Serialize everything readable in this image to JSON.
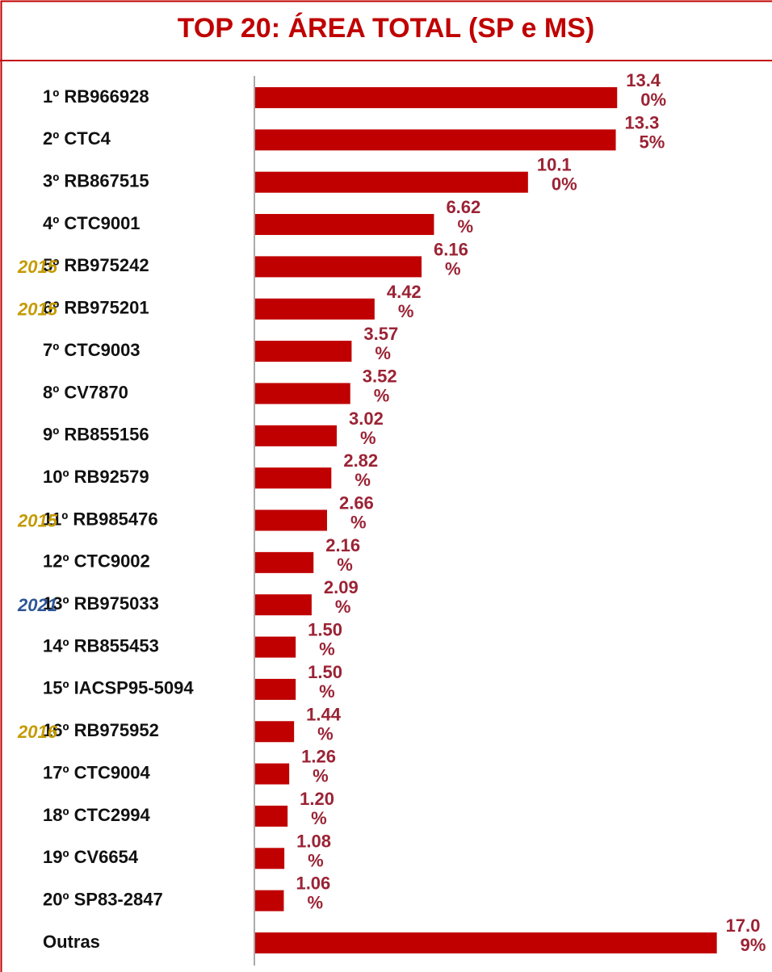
{
  "chart_data": {
    "type": "bar",
    "orientation": "horizontal",
    "title": "TOP 20: ÁREA TOTAL (SP e MS)",
    "categories": [
      "1º RB966928",
      "2º CTC4",
      "3º RB867515",
      "4º CTC9001",
      "5º RB975242",
      "6º RB975201",
      "7º CTC9003",
      "8º CV7870",
      "9º RB855156",
      "10º RB92579",
      "11º RB985476",
      "12º CTC9002",
      "13º RB975033",
      "14º RB855453",
      "15º IACSP95-5094",
      "16º RB975952",
      "17º CTC9004",
      "18º CTC2994",
      "19º CV6654",
      "20º SP83-2847",
      "Outras"
    ],
    "values": [
      13.4,
      13.35,
      10.1,
      6.62,
      6.16,
      4.42,
      3.57,
      3.52,
      3.02,
      2.82,
      2.66,
      2.16,
      2.09,
      1.5,
      1.5,
      1.44,
      1.26,
      1.2,
      1.08,
      1.06,
      17.09
    ],
    "value_labels": [
      "13.40%",
      "13.35%",
      "10.10%",
      "6.62%",
      "6.16%",
      "4.42%",
      "3.57%",
      "3.52%",
      "3.02%",
      "2.82%",
      "2.66%",
      "2.16%",
      "2.09%",
      "1.50%",
      "1.50%",
      "1.44%",
      "1.26%",
      "1.20%",
      "1.08%",
      "1.06%",
      "17.09%"
    ],
    "color": "#c00000",
    "year_tags": [
      null,
      null,
      null,
      null,
      {
        "text": "2015",
        "color": "#c49a00"
      },
      {
        "text": "2015",
        "color": "#c49a00"
      },
      null,
      null,
      null,
      null,
      {
        "text": "2015",
        "color": "#c49a00"
      },
      null,
      {
        "text": "2021",
        "color": "#2f5597"
      },
      null,
      null,
      {
        "text": "2016",
        "color": "#c49a00"
      },
      null,
      null,
      null,
      null,
      null
    ]
  }
}
